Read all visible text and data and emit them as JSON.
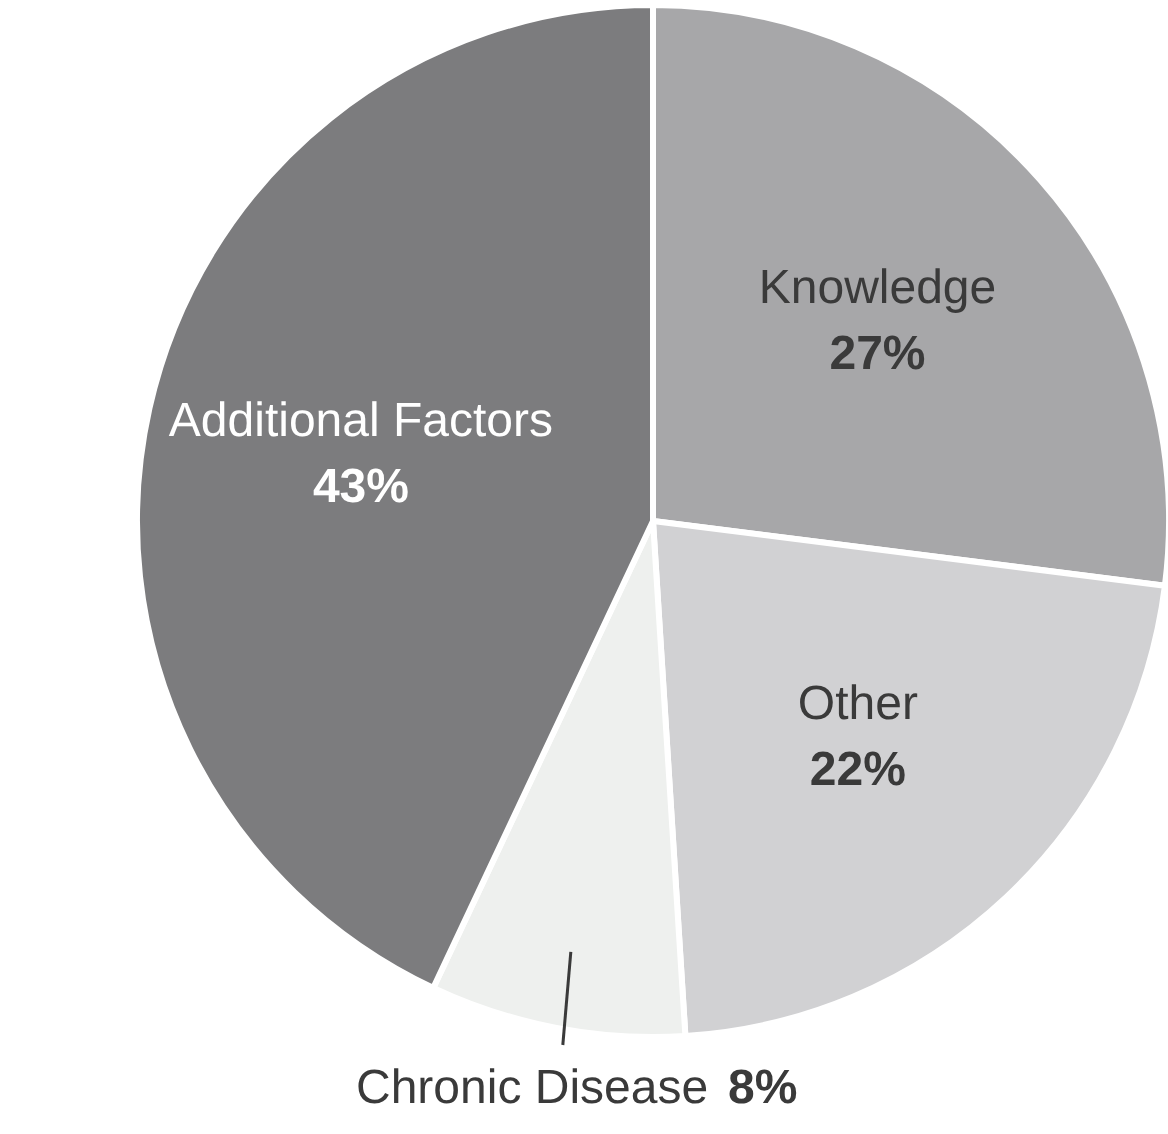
{
  "chart_data": {
    "type": "pie",
    "categories": [
      "Knowledge",
      "Other",
      "Chronic Disease",
      "Additional Factors"
    ],
    "values": [
      27,
      22,
      8,
      43
    ],
    "colors": [
      "#a7a7a9",
      "#d1d1d3",
      "#eef0ee",
      "#7c7c7e"
    ],
    "value_labels": [
      "27%",
      "22%",
      "8%",
      "43%"
    ]
  }
}
